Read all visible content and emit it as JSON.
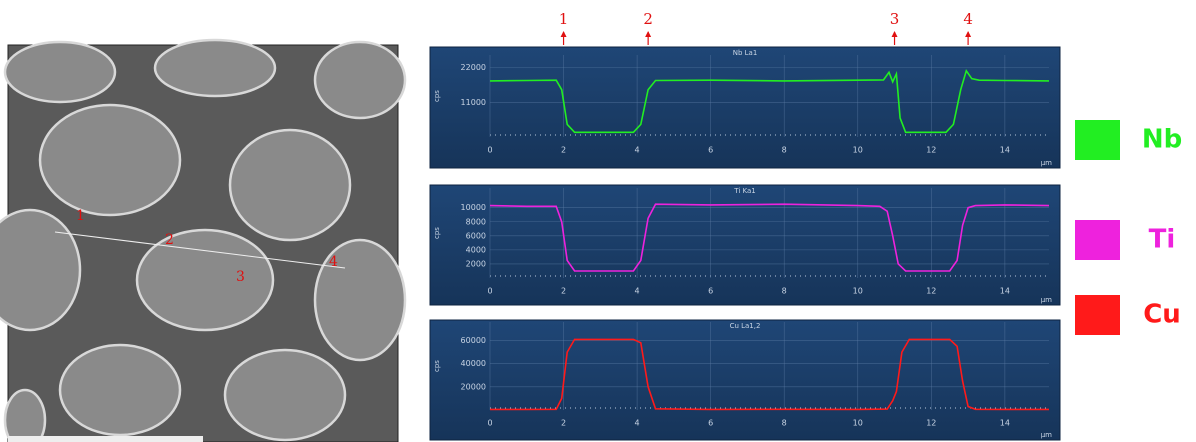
{
  "micrograph": {
    "labels": [
      "1",
      "2",
      "3",
      "4"
    ]
  },
  "chart_data": [
    {
      "type": "line",
      "title": "Nb La1",
      "y_label": "cps",
      "x_label": "µm",
      "xlim": [
        0,
        15.2
      ],
      "xticks": [
        0,
        2,
        4,
        6,
        8,
        10,
        12,
        14
      ],
      "ylim": [
        0,
        26000
      ],
      "yticks": [
        11000,
        22000
      ],
      "grid": true,
      "annotations": [
        {
          "label": "1",
          "x": 2.0
        },
        {
          "label": "2",
          "x": 4.3
        },
        {
          "label": "3",
          "x": 11.0
        },
        {
          "label": "4",
          "x": 13.0
        }
      ],
      "series": [
        {
          "name": "Nb",
          "color": "#22ee22",
          "x": [
            0,
            1,
            1.8,
            1.95,
            2.1,
            2.3,
            3.9,
            4.1,
            4.3,
            4.5,
            6,
            8,
            10,
            10.7,
            10.85,
            10.95,
            11.05,
            11.15,
            11.3,
            12.4,
            12.6,
            12.8,
            12.95,
            13.1,
            13.3,
            14,
            15.2
          ],
          "values": [
            17800,
            17900,
            18000,
            15000,
            4000,
            1500,
            1500,
            4000,
            15000,
            17900,
            18000,
            17800,
            18000,
            18100,
            20500,
            17500,
            20000,
            6000,
            1500,
            1500,
            4000,
            15000,
            21000,
            18500,
            18000,
            17900,
            17800
          ]
        }
      ]
    },
    {
      "type": "line",
      "title": "Ti Ka1",
      "y_label": "cps",
      "x_label": "µm",
      "xlim": [
        0,
        15.2
      ],
      "xticks": [
        0,
        2,
        4,
        6,
        8,
        10,
        12,
        14
      ],
      "ylim": [
        0,
        12800
      ],
      "yticks": [
        2000,
        4000,
        6000,
        8000,
        10000
      ],
      "grid": true,
      "series": [
        {
          "name": "Ti",
          "color": "#ee22dd",
          "x": [
            0,
            1,
            1.8,
            1.95,
            2.1,
            2.3,
            3.9,
            4.1,
            4.3,
            4.5,
            6,
            8,
            10,
            10.6,
            10.8,
            10.95,
            11.1,
            11.3,
            12.5,
            12.7,
            12.85,
            13.0,
            13.2,
            14,
            15.2
          ],
          "values": [
            10300,
            10200,
            10200,
            8000,
            2500,
            1000,
            1000,
            2500,
            8500,
            10500,
            10400,
            10500,
            10300,
            10200,
            9500,
            6000,
            2000,
            1000,
            1000,
            2500,
            7500,
            10000,
            10300,
            10400,
            10300
          ]
        }
      ]
    },
    {
      "type": "line",
      "title": "Cu La1,2",
      "y_label": "cps",
      "x_label": "µm",
      "xlim": [
        0,
        15.2
      ],
      "xticks": [
        0,
        2,
        4,
        6,
        8,
        10,
        12,
        14
      ],
      "ylim": [
        0,
        76000
      ],
      "yticks": [
        20000,
        40000,
        60000
      ],
      "grid": true,
      "series": [
        {
          "name": "Cu",
          "color": "#ff1a1a",
          "x": [
            0,
            1,
            1.8,
            1.95,
            2.1,
            2.3,
            3.9,
            4.1,
            4.3,
            4.5,
            6,
            8,
            10,
            10.8,
            10.95,
            11.05,
            11.2,
            11.4,
            12.5,
            12.7,
            12.85,
            13.0,
            13.2,
            14,
            15.2
          ],
          "values": [
            500,
            500,
            600,
            10000,
            50000,
            61000,
            61000,
            58000,
            20000,
            1000,
            500,
            600,
            500,
            800,
            8000,
            16000,
            50000,
            61000,
            61000,
            55000,
            25000,
            3000,
            600,
            500,
            500
          ]
        }
      ]
    }
  ]
}
